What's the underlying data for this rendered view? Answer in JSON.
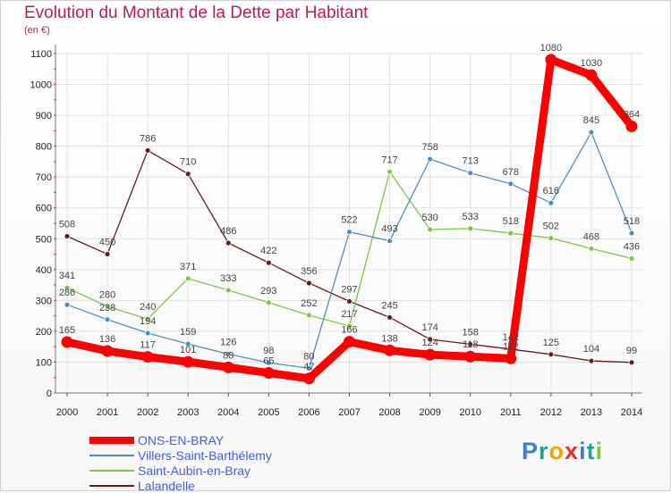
{
  "chart_data": {
    "type": "line",
    "title": "Evolution du Montant de la Dette par Habitant",
    "subtitle": "(en €)",
    "x": [
      "2000",
      "2001",
      "2002",
      "2003",
      "2004",
      "2005",
      "2006",
      "2007",
      "2008",
      "2009",
      "2010",
      "2011",
      "2012",
      "2013",
      "2014"
    ],
    "ylim": [
      0,
      1100
    ],
    "yticks": [
      0,
      100,
      200,
      300,
      400,
      500,
      600,
      700,
      800,
      900,
      1000,
      1100
    ],
    "grid": true,
    "legend_position": "bottom-left",
    "series": [
      {
        "name": "ONS-EN-BRAY",
        "color": "#ff0000",
        "values": [
          165,
          136,
          117,
          101,
          83,
          65,
          47,
          166,
          138,
          124,
          118,
          112,
          1080,
          1030,
          864
        ],
        "labels": [
          "165",
          "136",
          "117",
          "101",
          "83",
          "65",
          "47",
          "166",
          "138",
          "124",
          "118",
          "112",
          "1080",
          "1030",
          "864"
        ]
      },
      {
        "name": "Villers-Saint-Barthélemy",
        "color": "#4a90c8",
        "values": [
          286,
          238,
          194,
          159,
          126,
          98,
          80,
          522,
          493,
          758,
          713,
          678,
          616,
          845,
          518
        ],
        "labels": [
          "286",
          "238",
          "194",
          "159",
          "126",
          "98",
          "80",
          "522",
          "493",
          "758",
          "713",
          "678",
          "616",
          "845",
          "518"
        ]
      },
      {
        "name": "Saint-Aubin-en-Bray",
        "color": "#7ac943",
        "values": [
          341,
          280,
          240,
          371,
          333,
          293,
          252,
          217,
          717,
          530,
          533,
          518,
          502,
          468,
          436
        ],
        "labels": [
          "341",
          "280",
          "240",
          "371",
          "333",
          "293",
          "252",
          "217",
          "717",
          "530",
          "533",
          "518",
          "502",
          "468",
          "436"
        ]
      },
      {
        "name": "Lalandelle",
        "color": "#6b1a1a",
        "values": [
          508,
          450,
          786,
          710,
          486,
          422,
          356,
          297,
          245,
          174,
          158,
          142,
          125,
          104,
          99
        ],
        "labels": [
          "508",
          "450",
          "786",
          "710",
          "486",
          "422",
          "356",
          "297",
          "245",
          "174",
          "158",
          "142",
          "125",
          "104",
          "99"
        ]
      }
    ]
  },
  "brand": {
    "text": "Proxiti",
    "letters": [
      "P",
      "r",
      "o",
      "x",
      "i",
      "t",
      "i"
    ],
    "colors": [
      "#3a7fd0",
      "#2a9d8f",
      "#f4a300",
      "#e03030",
      "#3a7fd0",
      "#2a9d8f",
      "#7ac943"
    ]
  }
}
